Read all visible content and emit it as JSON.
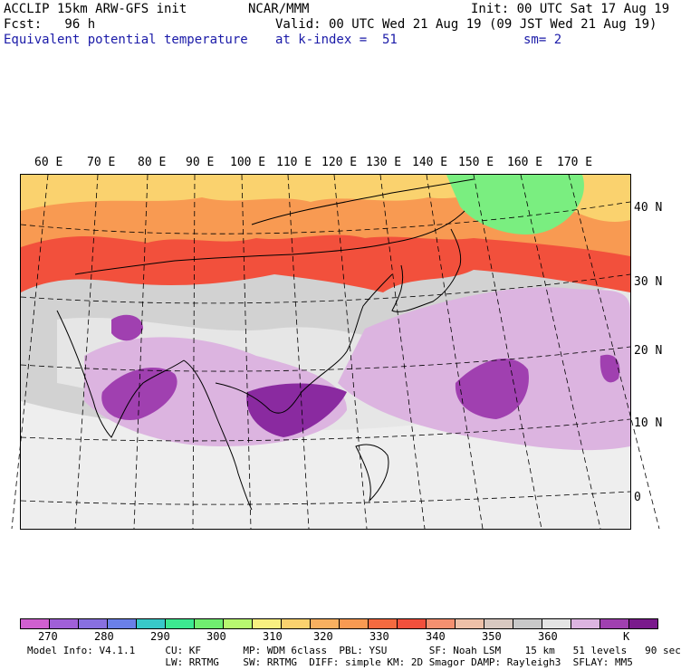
{
  "header": {
    "line1_left": "ACCLIP 15km ARW-GFS init",
    "line1_center": "NCAR/MMM",
    "line1_right": "Init: 00 UTC Sat 17 Aug 19",
    "line2_left": "Fcst:   96 h",
    "line2_right": "Valid: 00 UTC Wed 21 Aug 19 (09 JST Wed 21 Aug 19)",
    "line3_left": "Equivalent potential temperature",
    "line3_center": "at k-index =  51",
    "line3_right": "sm= 2"
  },
  "map": {
    "lon_labels": [
      "60 E",
      "70 E",
      "80 E",
      "90 E",
      "100 E",
      "110 E",
      "120 E",
      "130 E",
      "140 E",
      "150 E",
      "160 E",
      "170 E"
    ],
    "lat_labels": [
      "40 N",
      "30 N",
      "20 N",
      "10 N",
      "0"
    ],
    "colors": {
      "lt_purple": "#dcb4e0",
      "md_purple": "#a040b0",
      "dk_purple": "#7a1a8c",
      "lt_gray": "#eeeeee",
      "md_gray": "#d2d2d2",
      "dk_gray": "#bcbcbc",
      "red": "#f2503c",
      "orange": "#f89a52",
      "yellow": "#fad26e",
      "green": "#7aee80"
    }
  },
  "colorbar": {
    "colors": [
      "#d060d0",
      "#a060d8",
      "#8870e0",
      "#6a80e8",
      "#38c8c8",
      "#3ce890",
      "#70ee70",
      "#b8f870",
      "#f8f080",
      "#fad26e",
      "#f8b060",
      "#f89a52",
      "#f46a40",
      "#f2503c",
      "#f49070",
      "#eec0a8",
      "#d8c8c0",
      "#c8c8c8",
      "#e4e4e4",
      "#dcb4e0",
      "#a040b0",
      "#7a1a8c"
    ],
    "tick_labels": [
      "270",
      "280",
      "290",
      "300",
      "310",
      "320",
      "330",
      "340",
      "350",
      "360"
    ],
    "unit": "K"
  },
  "footer": {
    "line1": "Model Info: V4.1.1     CU: KF       MP: WDM 6class  PBL: YSU       SF: Noah LSM    15 km   51 levels   90 sec",
    "line2": "                       LW: RRTMG    SW: RRTMG  DIFF: simple KM: 2D Smagor DAMP: Rayleigh3  SFLAY: MM5"
  }
}
